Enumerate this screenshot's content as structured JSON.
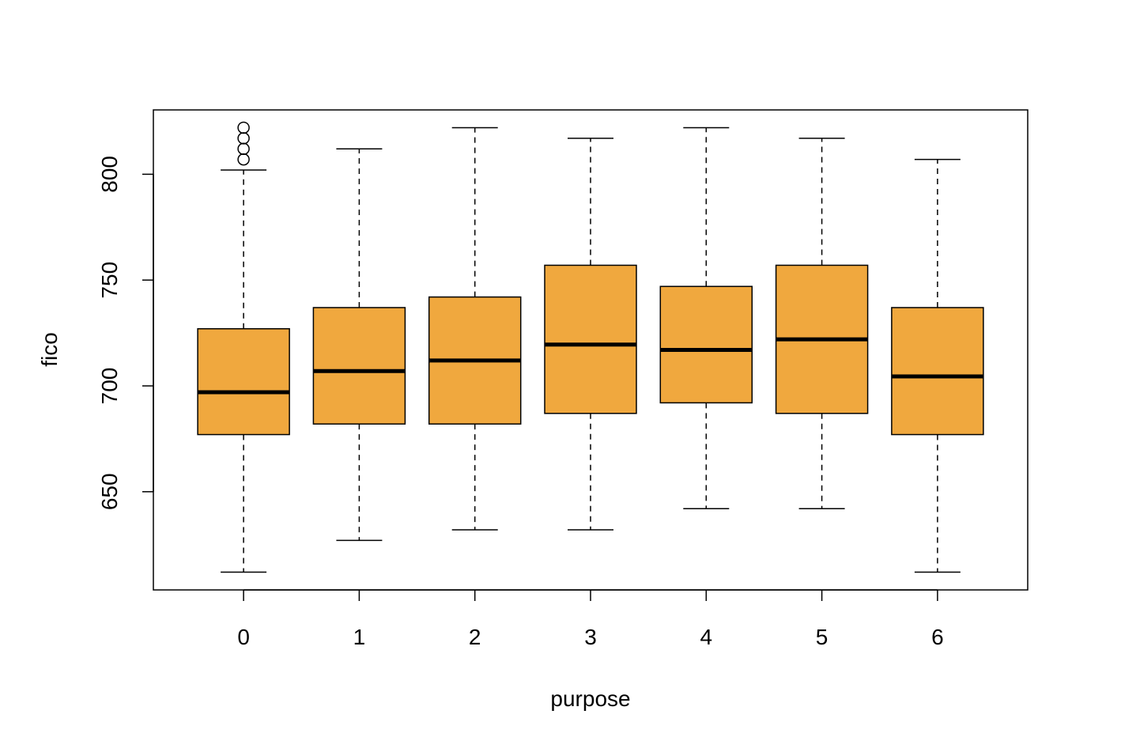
{
  "colors": {
    "box_fill": "#F0A83E",
    "stroke": "#000000",
    "background": "#FFFFFF"
  },
  "chart_data": {
    "type": "boxplot",
    "title": "",
    "xlabel": "purpose",
    "ylabel": "fico",
    "categories": [
      "0",
      "1",
      "2",
      "3",
      "4",
      "5",
      "6"
    ],
    "boxes": [
      {
        "category": "0",
        "whisker_low": 612,
        "q1": 677,
        "median": 697,
        "q3": 727,
        "whisker_high": 802,
        "outliers": [
          807,
          812,
          817,
          822
        ]
      },
      {
        "category": "1",
        "whisker_low": 627,
        "q1": 682,
        "median": 707,
        "q3": 737,
        "whisker_high": 812,
        "outliers": []
      },
      {
        "category": "2",
        "whisker_low": 632,
        "q1": 682,
        "median": 712,
        "q3": 742,
        "whisker_high": 822,
        "outliers": []
      },
      {
        "category": "3",
        "whisker_low": 632,
        "q1": 687,
        "median": 719.5,
        "q3": 757,
        "whisker_high": 817,
        "outliers": []
      },
      {
        "category": "4",
        "whisker_low": 642,
        "q1": 692,
        "median": 717,
        "q3": 747,
        "whisker_high": 822,
        "outliers": []
      },
      {
        "category": "5",
        "whisker_low": 642,
        "q1": 687,
        "median": 722,
        "q3": 757,
        "whisker_high": 817,
        "outliers": []
      },
      {
        "category": "6",
        "whisker_low": 612,
        "q1": 677,
        "median": 704.5,
        "q3": 737,
        "whisker_high": 807,
        "outliers": []
      }
    ],
    "y_ticks": [
      650,
      700,
      750,
      800
    ],
    "ylim": [
      603.6,
      830.4
    ],
    "xlim": [
      -0.78,
      6.78
    ],
    "grid": false,
    "legend": "none"
  }
}
